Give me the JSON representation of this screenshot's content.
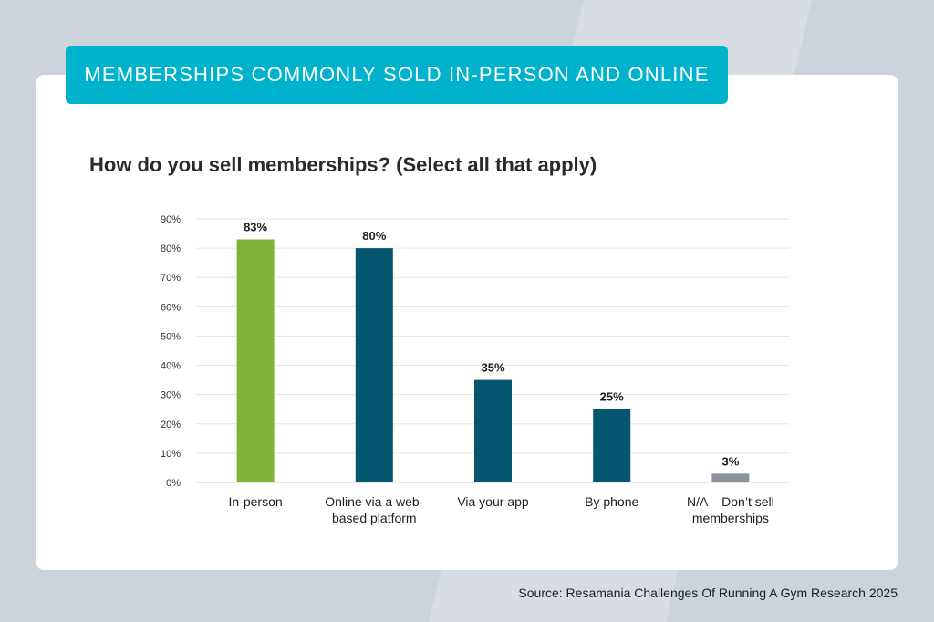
{
  "banner": {
    "title": "MEMBERSHIPS COMMONLY SOLD IN-PERSON AND ONLINE"
  },
  "question": "How do you sell memberships? (Select all that apply)",
  "source": "Source: Resamania Challenges Of Running A Gym Research 2025",
  "colors": {
    "background": "#cdd3db",
    "banner": "#00b2cc",
    "green": "#7fb239",
    "teal": "#055770",
    "gray": "#8a9399"
  },
  "chart_data": {
    "type": "bar",
    "categories": [
      [
        "In-person"
      ],
      [
        "Online via a web-",
        "based platform"
      ],
      [
        "Via your app"
      ],
      [
        "By phone"
      ],
      [
        "N/A – Don’t sell",
        "memberships"
      ]
    ],
    "values": [
      83,
      80,
      35,
      25,
      3
    ],
    "data_labels": [
      "83%",
      "80%",
      "35%",
      "25%",
      "3%"
    ],
    "bar_colors": [
      "#7fb239",
      "#055770",
      "#055770",
      "#055770",
      "#8a9399"
    ],
    "yticks": [
      "0%",
      "10%",
      "20%",
      "30%",
      "40%",
      "50%",
      "60%",
      "70%",
      "80%",
      "90%"
    ],
    "ylim": [
      0,
      90
    ],
    "grid": true,
    "legend": "none"
  }
}
